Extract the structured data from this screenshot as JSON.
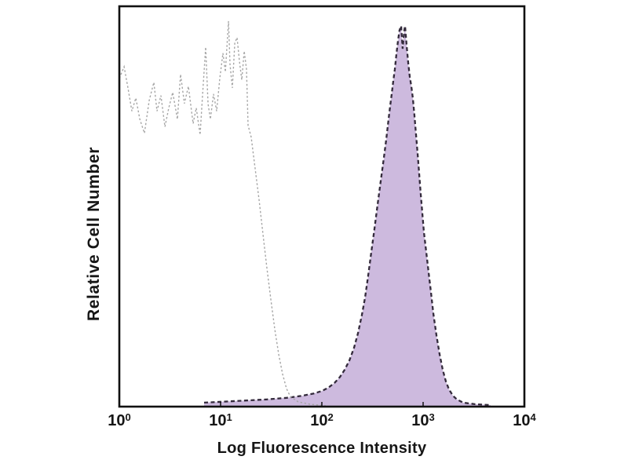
{
  "chart_data": {
    "type": "area",
    "title": "",
    "xlabel": "Log Fluorescence Intensity",
    "ylabel": "Relative Cell Number",
    "x_scale": "log10",
    "x_range_log": [
      0,
      4
    ],
    "x_tick_base": "10",
    "x_tick_exponents": [
      "0",
      "1",
      "2",
      "3",
      "4"
    ],
    "y_ticks": "none (relative scale, no tick labels shown)",
    "grid": false,
    "legend": "none",
    "frame_color": "#111111",
    "background_color": "#ffffff",
    "series": [
      {
        "name": "open histogram (control, thin dashed gray trace, peak near 10^1)",
        "style": "line",
        "line_color": "#a6a6a6",
        "line_width": 1.4,
        "line_dash": [
          2.5,
          2.6
        ],
        "fill": "none",
        "points_logx_relheight": [
          [
            0.0,
            0.82
          ],
          [
            0.047,
            0.849
          ],
          [
            0.085,
            0.796
          ],
          [
            0.124,
            0.738
          ],
          [
            0.163,
            0.771
          ],
          [
            0.202,
            0.718
          ],
          [
            0.248,
            0.683
          ],
          [
            0.295,
            0.765
          ],
          [
            0.341,
            0.81
          ],
          [
            0.372,
            0.738
          ],
          [
            0.411,
            0.777
          ],
          [
            0.45,
            0.699
          ],
          [
            0.488,
            0.746
          ],
          [
            0.527,
            0.785
          ],
          [
            0.574,
            0.718
          ],
          [
            0.605,
            0.83
          ],
          [
            0.643,
            0.757
          ],
          [
            0.682,
            0.8
          ],
          [
            0.729,
            0.707
          ],
          [
            0.76,
            0.746
          ],
          [
            0.798,
            0.679
          ],
          [
            0.822,
            0.777
          ],
          [
            0.853,
            0.898
          ],
          [
            0.876,
            0.757
          ],
          [
            0.899,
            0.718
          ],
          [
            0.93,
            0.781
          ],
          [
            0.961,
            0.738
          ],
          [
            0.992,
            0.82
          ],
          [
            1.023,
            0.883
          ],
          [
            1.047,
            0.836
          ],
          [
            1.078,
            0.963
          ],
          [
            1.093,
            0.855
          ],
          [
            1.116,
            0.796
          ],
          [
            1.14,
            0.908
          ],
          [
            1.163,
            0.922
          ],
          [
            1.186,
            0.863
          ],
          [
            1.209,
            0.816
          ],
          [
            1.233,
            0.888
          ],
          [
            1.256,
            0.843
          ],
          [
            1.271,
            0.703
          ],
          [
            1.302,
            0.673
          ],
          [
            1.341,
            0.595
          ],
          [
            1.38,
            0.517
          ],
          [
            1.419,
            0.429
          ],
          [
            1.457,
            0.346
          ],
          [
            1.496,
            0.268
          ],
          [
            1.535,
            0.194
          ],
          [
            1.574,
            0.131
          ],
          [
            1.612,
            0.082
          ],
          [
            1.651,
            0.045
          ],
          [
            1.69,
            0.025
          ],
          [
            1.767,
            0.012
          ],
          [
            1.884,
            0.006
          ],
          [
            2.039,
            0.002
          ]
        ]
      },
      {
        "name": "filled histogram (stained, lavender fill with dark dashed outline, peak near 6x10^2)",
        "style": "area",
        "line_color": "#332a3b",
        "line_width": 2.3,
        "line_dash": [
          5,
          3.5
        ],
        "fill": "#cdbade",
        "points_logx_relheight": [
          [
            0.837,
            0.01
          ],
          [
            1.147,
            0.014
          ],
          [
            1.457,
            0.018
          ],
          [
            1.651,
            0.022
          ],
          [
            1.806,
            0.027
          ],
          [
            1.922,
            0.033
          ],
          [
            2.0,
            0.039
          ],
          [
            2.062,
            0.047
          ],
          [
            2.124,
            0.059
          ],
          [
            2.178,
            0.074
          ],
          [
            2.225,
            0.092
          ],
          [
            2.271,
            0.115
          ],
          [
            2.318,
            0.147
          ],
          [
            2.357,
            0.184
          ],
          [
            2.395,
            0.229
          ],
          [
            2.426,
            0.272
          ],
          [
            2.457,
            0.327
          ],
          [
            2.488,
            0.386
          ],
          [
            2.519,
            0.444
          ],
          [
            2.55,
            0.503
          ],
          [
            2.581,
            0.562
          ],
          [
            2.612,
            0.62
          ],
          [
            2.636,
            0.667
          ],
          [
            2.659,
            0.718
          ],
          [
            2.674,
            0.749
          ],
          [
            2.69,
            0.781
          ],
          [
            2.705,
            0.812
          ],
          [
            2.721,
            0.843
          ],
          [
            2.736,
            0.879
          ],
          [
            2.752,
            0.914
          ],
          [
            2.767,
            0.94
          ],
          [
            2.783,
            0.951
          ],
          [
            2.791,
            0.922
          ],
          [
            2.798,
            0.894
          ],
          [
            2.806,
            0.918
          ],
          [
            2.814,
            0.94
          ],
          [
            2.822,
            0.951
          ],
          [
            2.837,
            0.902
          ],
          [
            2.853,
            0.859
          ],
          [
            2.868,
            0.824
          ],
          [
            2.884,
            0.8
          ],
          [
            2.899,
            0.769
          ],
          [
            2.915,
            0.726
          ],
          [
            2.93,
            0.679
          ],
          [
            2.946,
            0.632
          ],
          [
            2.961,
            0.581
          ],
          [
            2.977,
            0.53
          ],
          [
            2.992,
            0.483
          ],
          [
            3.008,
            0.436
          ],
          [
            3.031,
            0.386
          ],
          [
            3.054,
            0.335
          ],
          [
            3.078,
            0.284
          ],
          [
            3.101,
            0.233
          ],
          [
            3.132,
            0.178
          ],
          [
            3.163,
            0.131
          ],
          [
            3.194,
            0.092
          ],
          [
            3.225,
            0.063
          ],
          [
            3.256,
            0.043
          ],
          [
            3.295,
            0.027
          ],
          [
            3.333,
            0.018
          ],
          [
            3.395,
            0.01
          ],
          [
            3.512,
            0.006
          ],
          [
            3.667,
            0.004
          ]
        ]
      }
    ]
  }
}
